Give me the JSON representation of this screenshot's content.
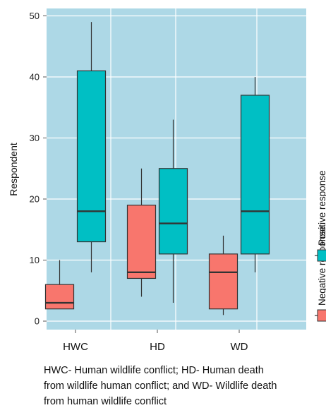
{
  "chart_data": {
    "type": "box",
    "title": "",
    "xlabel": "",
    "ylabel": "Respondent",
    "ylim": [
      0,
      50
    ],
    "yticks": [
      0,
      10,
      20,
      30,
      40,
      50
    ],
    "categories": [
      "HWC",
      "HD",
      "WD"
    ],
    "grid": true,
    "legend_position": "right",
    "series": [
      {
        "name": "Negative response",
        "color": "#f8766d",
        "boxes": [
          {
            "min": 2,
            "q1": 2,
            "median": 3,
            "q3": 6,
            "max": 10
          },
          {
            "min": 4,
            "q1": 7,
            "median": 8,
            "q3": 19,
            "max": 25
          },
          {
            "min": 1,
            "q1": 2,
            "median": 8,
            "q3": 11,
            "max": 14
          }
        ]
      },
      {
        "name": "Positive response",
        "color": "#00bfc4",
        "boxes": [
          {
            "min": 8,
            "q1": 13,
            "median": 18,
            "q3": 41,
            "max": 49
          },
          {
            "min": 3,
            "q1": 11,
            "median": 16,
            "q3": 25,
            "max": 33
          },
          {
            "min": 8,
            "q1": 11,
            "median": 18,
            "q3": 37,
            "max": 40
          }
        ]
      }
    ]
  },
  "caption": {
    "lines": [
      "HWC- Human wildlife conflict; HD- Human death",
      "from wildlife human conflict; and WD- Wildlife death",
      "from human wildlife conflict"
    ]
  },
  "colors": {
    "panel_background": "#add8e6",
    "grid": "#ffffff"
  }
}
